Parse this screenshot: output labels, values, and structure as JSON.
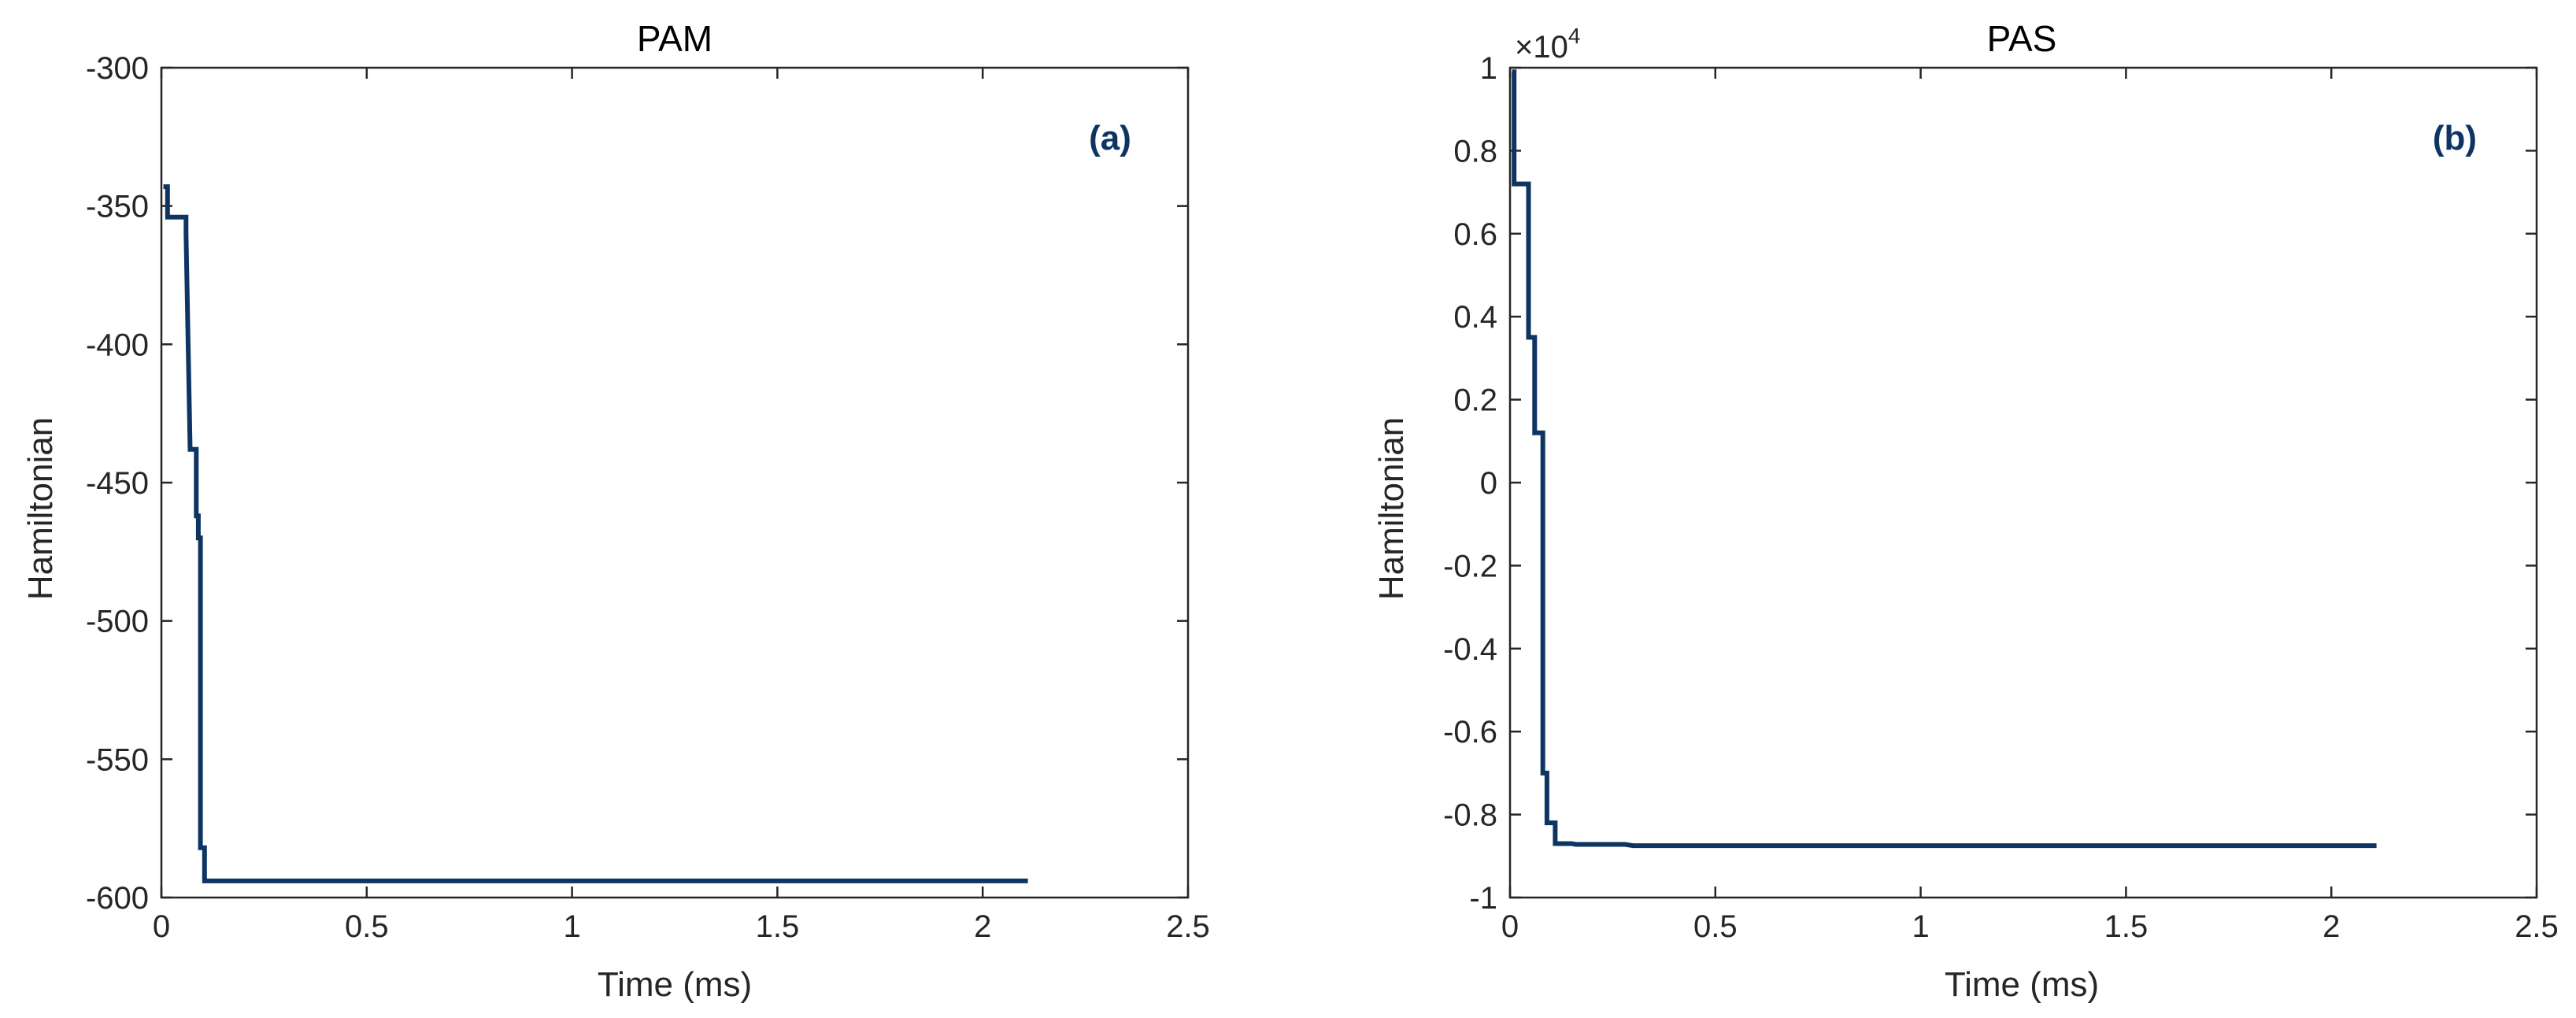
{
  "chart_data": [
    {
      "type": "line",
      "title": "PAM",
      "panel_label": "(a)",
      "xlabel": "Time (ms)",
      "ylabel": "Hamiltonian",
      "xlim": [
        0,
        2.5
      ],
      "ylim": [
        -600,
        -300
      ],
      "xticks": [
        0,
        0.5,
        1,
        1.5,
        2,
        2.5
      ],
      "xtick_labels": [
        "0",
        "0.5",
        "1",
        "1.5",
        "2",
        "2.5"
      ],
      "yticks": [
        -600,
        -550,
        -500,
        -450,
        -400,
        -350,
        -300
      ],
      "ytick_labels": [
        "-600",
        "-550",
        "-500",
        "-450",
        "-400",
        "-350",
        "-300"
      ],
      "grid": false,
      "series": [
        {
          "color": "#0e3462",
          "x": [
            0.005,
            0.01,
            0.015,
            0.015,
            0.06,
            0.06,
            0.07,
            0.075,
            0.075,
            0.085,
            0.085,
            0.09,
            0.09,
            0.095,
            0.095,
            0.105,
            0.105,
            2.11
          ],
          "y": [
            -343,
            -343,
            -343,
            -354,
            -354,
            -360,
            -438,
            -438,
            -438,
            -438,
            -462,
            -462,
            -470,
            -470,
            -582,
            -582,
            -594,
            -594
          ]
        }
      ]
    },
    {
      "type": "line",
      "title": "PAS",
      "panel_label": "(b)",
      "xlabel": "Time (ms)",
      "ylabel": "Hamiltonian",
      "exponent": {
        "base": "×10",
        "power": "4"
      },
      "xlim": [
        0,
        2.5
      ],
      "ylim": [
        -1,
        1
      ],
      "xticks": [
        0,
        0.5,
        1,
        1.5,
        2,
        2.5
      ],
      "xtick_labels": [
        "0",
        "0.5",
        "1",
        "1.5",
        "2",
        "2.5"
      ],
      "yticks": [
        -1,
        -0.8,
        -0.6,
        -0.4,
        -0.2,
        0,
        0.2,
        0.4,
        0.6,
        0.8,
        1
      ],
      "ytick_labels": [
        "-1",
        "-0.8",
        "-0.6",
        "-0.4",
        "-0.2",
        "0",
        "0.2",
        "0.4",
        "0.6",
        "0.8",
        "1"
      ],
      "grid": false,
      "series": [
        {
          "color": "#0e3462",
          "x": [
            0.005,
            0.005,
            0.01,
            0.01,
            0.03,
            0.03,
            0.045,
            0.045,
            0.06,
            0.06,
            0.07,
            0.07,
            0.08,
            0.08,
            0.09,
            0.09,
            0.11,
            0.11,
            0.12,
            0.12,
            0.15,
            0.16,
            0.2,
            0.22,
            0.28,
            0.3,
            0.4,
            0.5,
            1.0,
            2.11
          ],
          "y": [
            0.99,
            0.99,
            0.99,
            0.72,
            0.72,
            0.72,
            0.72,
            0.35,
            0.35,
            0.12,
            0.12,
            0.12,
            0.12,
            -0.7,
            -0.7,
            -0.82,
            -0.82,
            -0.87,
            -0.87,
            -0.87,
            -0.87,
            -0.872,
            -0.872,
            -0.872,
            -0.872,
            -0.875,
            -0.875,
            -0.875,
            -0.875,
            -0.875
          ]
        }
      ]
    }
  ]
}
